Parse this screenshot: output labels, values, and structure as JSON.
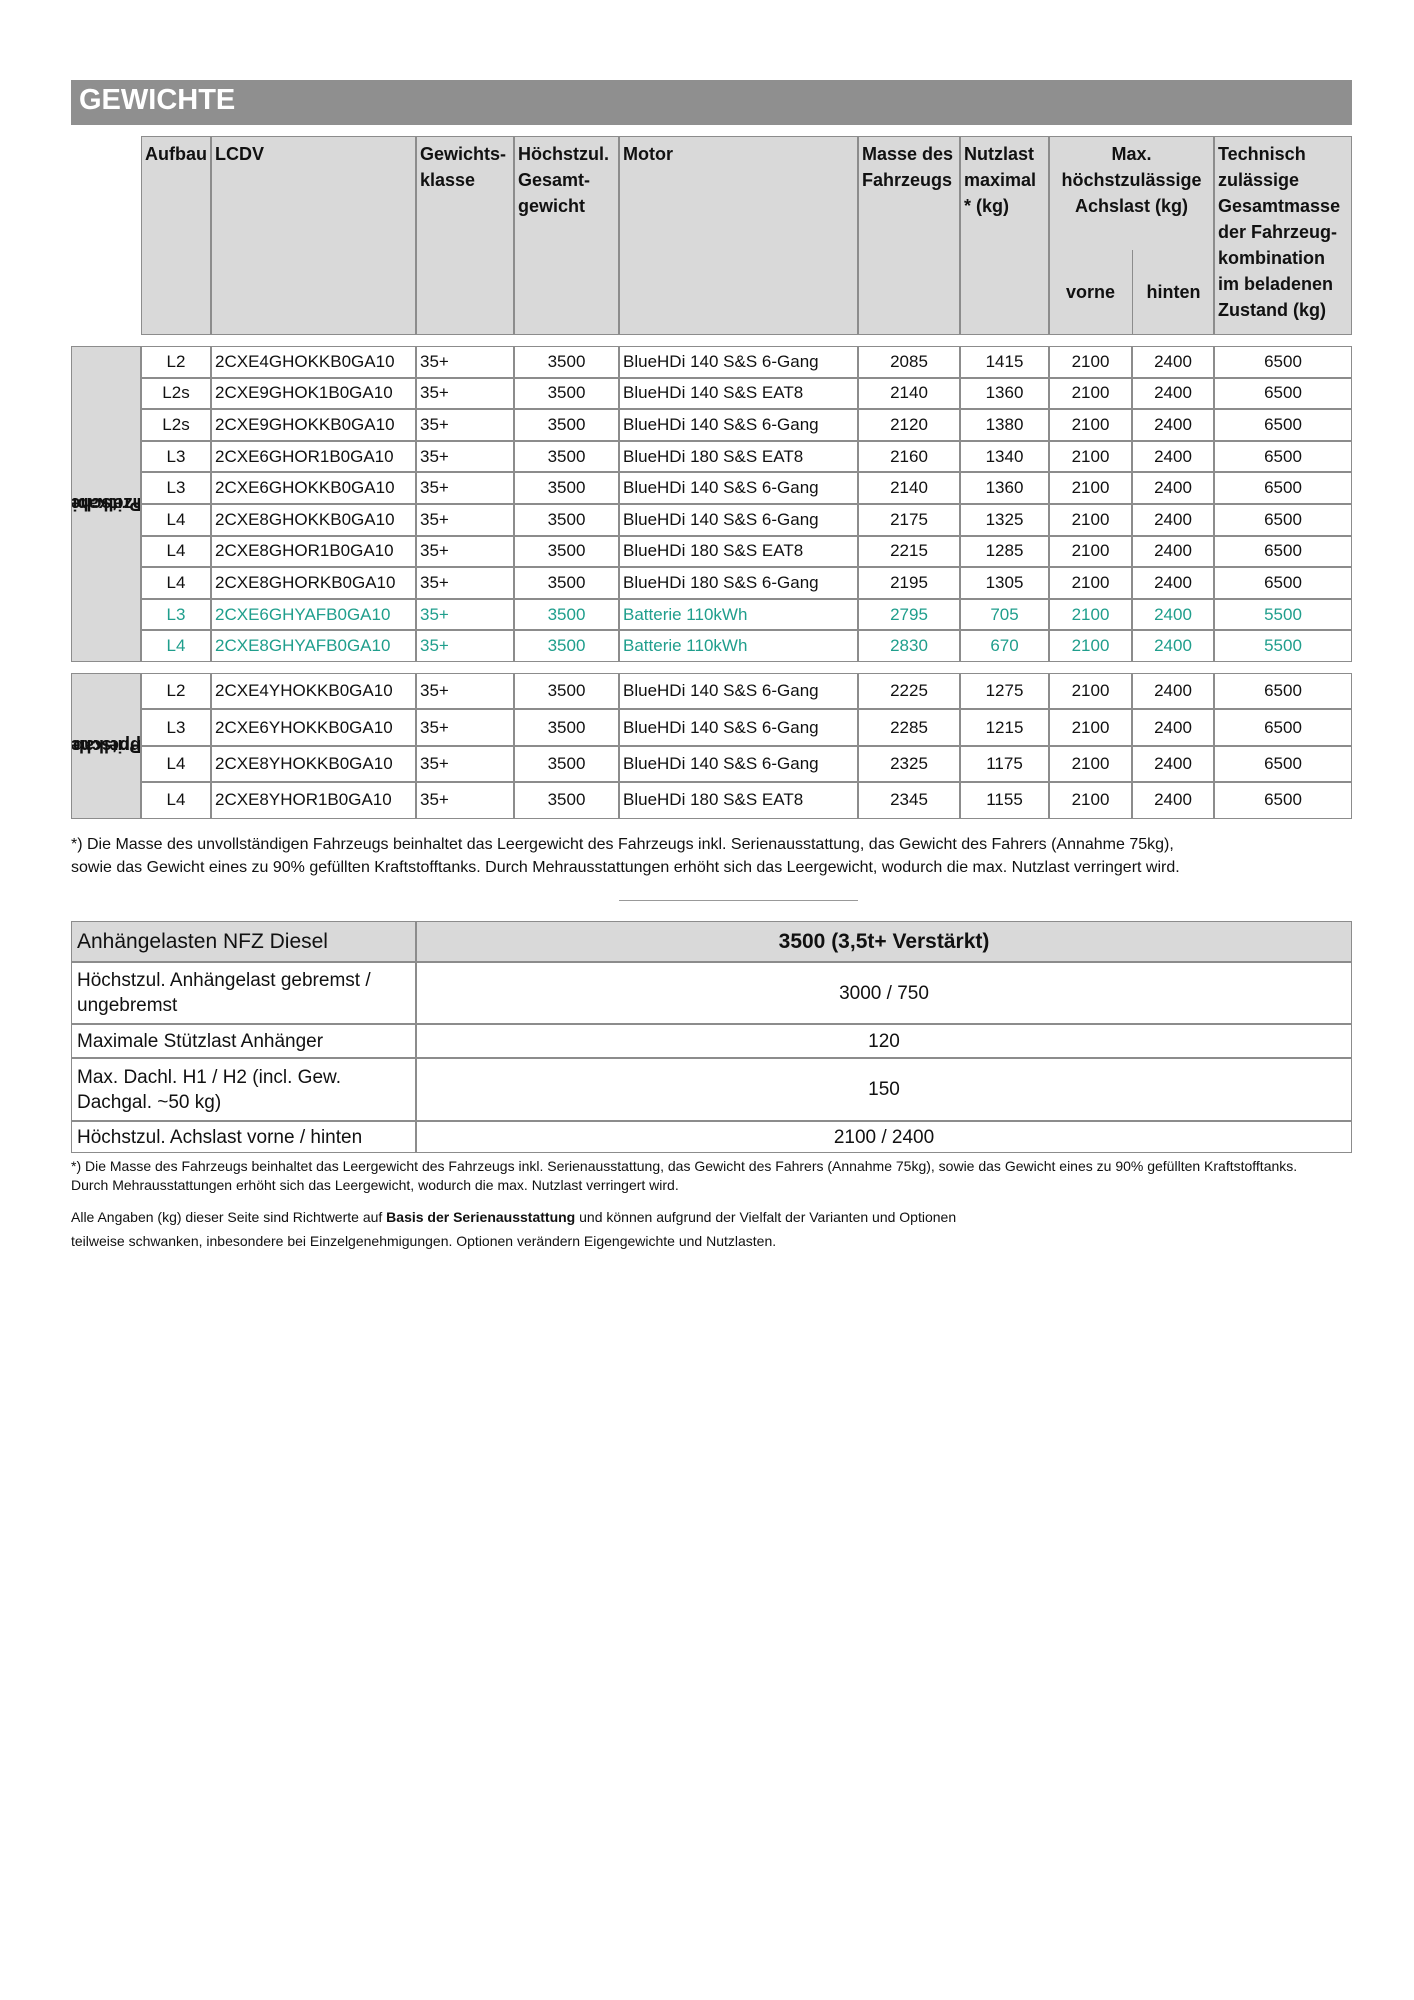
{
  "header": {
    "title": "GEWICHTE"
  },
  "weights_table": {
    "columns": [
      "Aufbau",
      "LCDV",
      "Gewichts-klasse",
      "Höchstzul. Gesamt-gewicht",
      "Motor",
      "Masse des Fahrzeugs",
      "Nutzlast maximal * (kg)",
      "Max. höchstzulässige Achslast (kg)",
      "Technisch zulässige Gesamtmasse der Fahrzeug-kombination im beladenen Zustand (kg)"
    ],
    "axle_subcolumns": [
      "vorne",
      "hinten"
    ],
    "groups": [
      {
        "label": [
          "Pritsche",
          "Einzelkabine"
        ],
        "rows": [
          {
            "cells": [
              "L2",
              "2CXE4GHOKKB0GA10",
              "35+",
              3500,
              "BlueHDi 140 S&S 6-Gang",
              2085,
              1415,
              2100,
              2400,
              6500
            ]
          },
          {
            "cells": [
              "L2s",
              "2CXE9GHOK1B0GA10",
              "35+",
              3500,
              "BlueHDi 140 S&S EAT8",
              2140,
              1360,
              2100,
              2400,
              6500
            ]
          },
          {
            "cells": [
              "L2s",
              "2CXE9GHOKKB0GA10",
              "35+",
              3500,
              "BlueHDi 140 S&S 6-Gang",
              2120,
              1380,
              2100,
              2400,
              6500
            ]
          },
          {
            "cells": [
              "L3",
              "2CXE6GHOR1B0GA10",
              "35+",
              3500,
              "BlueHDi 180 S&S EAT8",
              2160,
              1340,
              2100,
              2400,
              6500
            ]
          },
          {
            "cells": [
              "L3",
              "2CXE6GHOKKB0GA10",
              "35+",
              3500,
              "BlueHDi 140 S&S 6-Gang",
              2140,
              1360,
              2100,
              2400,
              6500
            ]
          },
          {
            "cells": [
              "L4",
              "2CXE8GHOKKB0GA10",
              "35+",
              3500,
              "BlueHDi 140 S&S 6-Gang",
              2175,
              1325,
              2100,
              2400,
              6500
            ]
          },
          {
            "cells": [
              "L4",
              "2CXE8GHOR1B0GA10",
              "35+",
              3500,
              "BlueHDi 180 S&S EAT8",
              2215,
              1285,
              2100,
              2400,
              6500
            ]
          },
          {
            "cells": [
              "L4",
              "2CXE8GHORKB0GA10",
              "35+",
              3500,
              "BlueHDi 180 S&S 6-Gang",
              2195,
              1305,
              2100,
              2400,
              6500
            ]
          },
          {
            "cells": [
              "L3",
              "2CXE6GHYAFB0GA10",
              "35+",
              3500,
              "Batterie 110kWh",
              2795,
              705,
              2100,
              2400,
              5500
            ],
            "color": "#1f9e8c"
          },
          {
            "cells": [
              "L4",
              "2CXE8GHYAFB0GA10",
              "35+",
              3500,
              "Batterie 110kWh",
              2830,
              670,
              2100,
              2400,
              5500
            ],
            "color": "#1f9e8c"
          }
        ]
      },
      {
        "label": [
          "Pritsche",
          "Doppelkabine"
        ],
        "rows": [
          {
            "cells": [
              "L2",
              "2CXE4YHOKKB0GA10",
              "35+",
              3500,
              "BlueHDi 140 S&S 6-Gang",
              2225,
              1275,
              2100,
              2400,
              6500
            ]
          },
          {
            "cells": [
              "L3",
              "2CXE6YHOKKB0GA10",
              "35+",
              3500,
              "BlueHDi 140 S&S 6-Gang",
              2285,
              1215,
              2100,
              2400,
              6500
            ]
          },
          {
            "cells": [
              "L4",
              "2CXE8YHOKKB0GA10",
              "35+",
              3500,
              "BlueHDi 140 S&S 6-Gang",
              2325,
              1175,
              2100,
              2400,
              6500
            ]
          },
          {
            "cells": [
              "L4",
              "2CXE8YHOR1B0GA10",
              "35+",
              3500,
              "BlueHDi 180 S&S EAT8",
              2345,
              1155,
              2100,
              2400,
              6500
            ]
          }
        ]
      }
    ]
  },
  "footnote": "*) Die Masse des unvollständigen Fahrzeugs beinhaltet das Leergewicht des Fahrzeugs inkl. Serienausstattung, das Gewicht des Fahrers (Annahme 75kg), sowie das Gewicht eines zu 90% gefüllten Kraftstofftanks. Durch Mehrausstattungen erhöht sich das Leergewicht, wodurch die max. Nutzlast verringert wird.",
  "trailer_table": {
    "header": [
      "Anhängelasten NFZ Diesel",
      "3500 (3,5t+ Verstärkt)"
    ],
    "rows": [
      [
        "Höchstzul. Anhängelast gebremst / ungebremst",
        "3000 / 750"
      ],
      [
        "Maximale Stützlast Anhänger",
        "120"
      ],
      [
        "Max. Dachl. H1 / H2 (incl. Gew. Dachgal. ~50 kg)",
        "150"
      ],
      [
        "Höchstzul. Achslast vorne / hinten",
        "2100 / 2400"
      ]
    ]
  },
  "footnote2": "*) Die Masse des Fahrzeugs beinhaltet das Leergewicht des Fahrzeugs inkl. Serienausstattung, das Gewicht des Fahrers (Annahme 75kg), sowie das Gewicht eines zu 90% gefüllten Kraftstofftanks. Durch Mehrausstattungen erhöht sich das Leergewicht, wodurch die max. Nutzlast verringert wird.",
  "note": {
    "parts": [
      "Alle Angaben (kg) dieser Seite sind Richtwerte auf ",
      "Basis der Serienausstattung",
      " und können aufgrund der Vielfalt der Varianten und Optionen",
      "teilweise schwanken,  inbesondere bei Einzelgenehmigungen. Optionen verändern Eigengewichte und Nutzlasten."
    ]
  }
}
